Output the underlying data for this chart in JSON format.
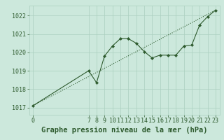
{
  "title": "Graphe pression niveau de la mer (hPa)",
  "background_color": "#cce8dc",
  "plot_bg_color": "#cce8dc",
  "line_color": "#2d5a2d",
  "trend_color": "#2d5a2d",
  "marker_color": "#2d5a2d",
  "x_data": [
    0,
    7,
    8,
    9,
    10,
    11,
    12,
    13,
    14,
    15,
    16,
    17,
    18,
    19,
    20,
    21,
    22,
    23
  ],
  "y_data": [
    1017.1,
    1019.0,
    1018.35,
    1019.8,
    1020.35,
    1020.75,
    1020.75,
    1020.5,
    1020.05,
    1019.7,
    1019.85,
    1019.85,
    1019.85,
    1020.35,
    1020.4,
    1021.5,
    1021.95,
    1022.3
  ],
  "trend_x": [
    0,
    23
  ],
  "trend_y": [
    1017.1,
    1022.3
  ],
  "ylim": [
    1016.6,
    1022.55
  ],
  "xlim": [
    -0.5,
    23.5
  ],
  "yticks": [
    1017,
    1018,
    1019,
    1020,
    1021,
    1022
  ],
  "xticks": [
    0,
    7,
    8,
    9,
    10,
    11,
    12,
    13,
    14,
    15,
    16,
    17,
    18,
    19,
    20,
    21,
    22,
    23
  ],
  "grid_color": "#aacfbe",
  "title_fontsize": 7.5,
  "tick_fontsize": 6.0,
  "title_color": "#2d5a2d"
}
